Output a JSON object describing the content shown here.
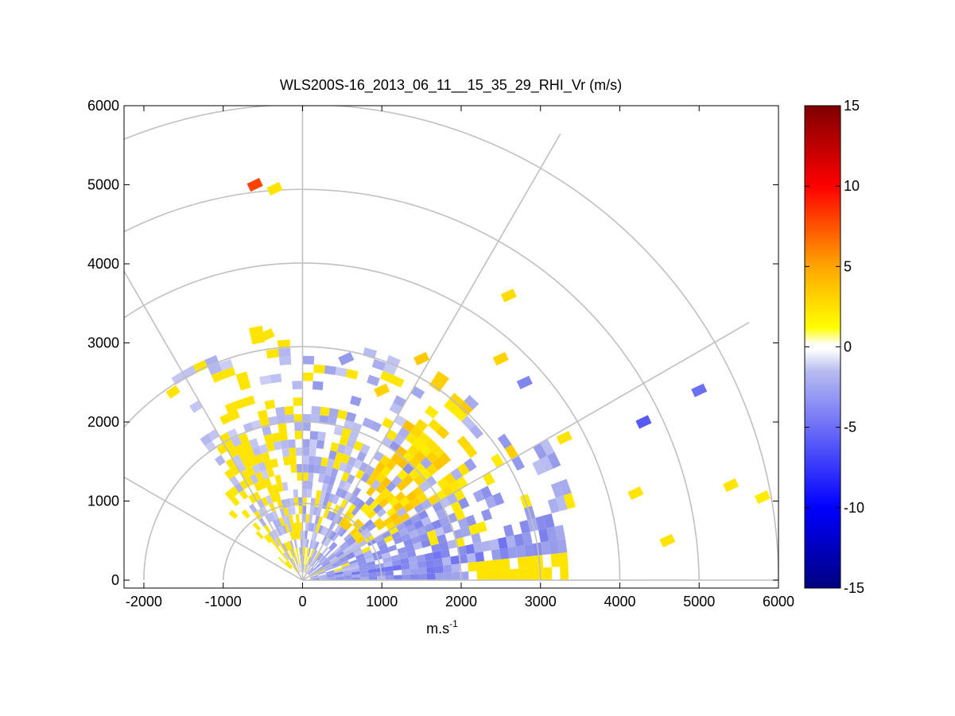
{
  "chart_data": {
    "type": "heatmap",
    "subtype": "polar-rhi-scan",
    "title": "WLS200S-16_2013_06_11__15_35_29_RHI_Vr (m/s)",
    "xlabel": "m.s",
    "xlabel_sup": "-1",
    "ylabel": "",
    "xlim": [
      -2250,
      6000
    ],
    "ylim": [
      -100,
      6000
    ],
    "x_ticks": [
      "-2000",
      "-1000",
      "0",
      "1000",
      "2000",
      "3000",
      "4000",
      "5000",
      "6000"
    ],
    "y_ticks": [
      "0",
      "1000",
      "2000",
      "3000",
      "4000",
      "5000",
      "6000"
    ],
    "grid": {
      "ring_radii": [
        1000,
        2000,
        3000,
        4000,
        5000,
        6000
      ],
      "spoke_angles_deg": [
        0,
        30,
        60,
        90,
        120,
        150
      ]
    },
    "colorbar": {
      "ticks": [
        "15",
        "10",
        "5",
        "0",
        "-5",
        "-10",
        "-15"
      ],
      "range": [
        -15,
        15
      ]
    },
    "cells": [
      {
        "x": 3300,
        "y": 1800,
        "v": 1.5
      },
      {
        "x": 2500,
        "y": 2800,
        "v": 2.5
      },
      {
        "x": 2800,
        "y": 2500,
        "v": -4
      },
      {
        "x": 4300,
        "y": 2000,
        "v": -6
      },
      {
        "x": 5400,
        "y": 1200,
        "v": 1.5
      },
      {
        "x": -600,
        "y": 5000,
        "v": 8
      },
      {
        "x": -350,
        "y": 4950,
        "v": 1.5
      },
      {
        "x": 2600,
        "y": 3600,
        "v": 2
      },
      {
        "x": 1500,
        "y": 2800,
        "v": 3
      },
      {
        "x": 1000,
        "y": 2400,
        "v": 2.5
      },
      {
        "x": -450,
        "y": 3100,
        "v": 1.5
      },
      {
        "x": 550,
        "y": 2800,
        "v": -3
      },
      {
        "x": 4200,
        "y": 1100,
        "v": 1.5
      },
      {
        "x": 4600,
        "y": 500,
        "v": 1.5
      },
      {
        "x": 5000,
        "y": 2400,
        "v": -5
      },
      {
        "x": 5800,
        "y": 1050,
        "v": 1
      }
    ]
  }
}
